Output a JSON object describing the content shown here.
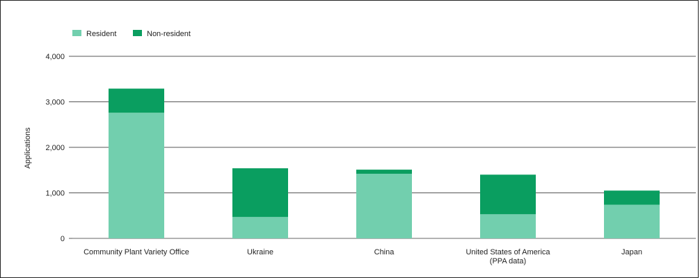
{
  "chart_data": {
    "type": "bar",
    "stacked": true,
    "ylabel": "Applications",
    "xlabel": "",
    "ylim": [
      0,
      4000
    ],
    "yticks": [
      0,
      1000,
      2000,
      3000,
      4000
    ],
    "ytick_labels": [
      "0",
      "1,000",
      "2,000",
      "3,000",
      "4,000"
    ],
    "categories": [
      [
        "Community Plant Variety Office"
      ],
      [
        "Ukraine"
      ],
      [
        "China"
      ],
      [
        "United States of America",
        "(PPA data)"
      ],
      [
        "Japan"
      ]
    ],
    "series": [
      {
        "name": "Resident",
        "color": "#72cfae",
        "values": [
          2760,
          470,
          1420,
          530,
          740
        ]
      },
      {
        "name": "Non-resident",
        "color": "#0a9e60",
        "values": [
          530,
          1070,
          90,
          870,
          310
        ]
      }
    ],
    "grid": true,
    "legend_position": "top-left"
  }
}
